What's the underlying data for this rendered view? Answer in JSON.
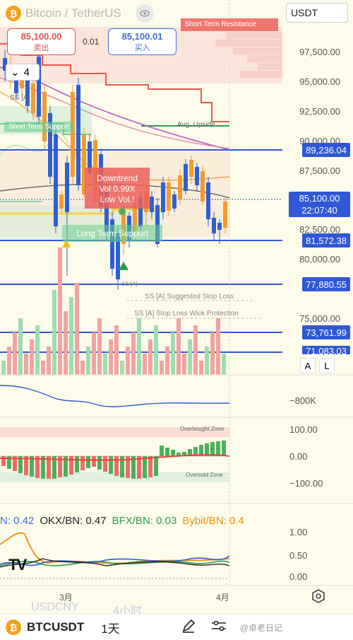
{
  "header": {
    "pair_title": "Bitcoin / TetherUS",
    "currency": "USDT",
    "sell_price": "85,100.00",
    "sell_label": "卖出",
    "spread": "0.01",
    "buy_price": "85,100.01",
    "buy_label": "买入",
    "stack_count": "4"
  },
  "price_axis": {
    "ticks": [
      "97,500.00",
      "95,000.00",
      "92,500.00",
      "90,000.00",
      "87,500.00",
      "82,500.00",
      "80,000.00",
      "75,000.00"
    ],
    "levels": [
      "89,236.04",
      "81,572.38",
      "77,880.55",
      "73,761.99",
      "71,083.03"
    ],
    "current_price": "85,100.00",
    "current_time": "22:07:40"
  },
  "annotations": {
    "short_term_resistance": "Short Term Resistance",
    "avg_upside": "Avg. Upside",
    "short_term_support": "Short Term Support",
    "downtrend_line1": "Downtrend",
    "downtrend_line2": "Vol 0.99X",
    "downtrend_line3": "Low Vol.!",
    "long_term_support": "Long Term Support",
    "suggested_stop": "SS [A] Suggested Stop Loss",
    "wick_protection": "SS [A] Stop Loss Wick Protection",
    "ss_a": "SS [A]",
    "ss_a_small": "SS [A]"
  },
  "volume_panel": {
    "a_label": "A",
    "l_label": "L"
  },
  "osc_panel": {
    "value": "−800K"
  },
  "zone_panel": {
    "overbought": "Overbought Zone",
    "oversold": "Oversold Zone",
    "ticks": [
      "100.00",
      "0.00",
      "−100.00"
    ]
  },
  "exchange_panel": {
    "items": [
      {
        "text": "N: 0.42",
        "color": "#3b6fd8"
      },
      {
        "text": "OKX/BN: 0.47",
        "color": "#222222"
      },
      {
        "text": "BFX/BN: 0.03",
        "color": "#2e9e4f"
      },
      {
        "text": "Bybit/BN: 0.4",
        "color": "#e8930c"
      }
    ],
    "ticks": [
      "1.00",
      "0.50",
      "0.00"
    ],
    "watermark": "TV"
  },
  "time_axis": {
    "march": "3月",
    "april": "4月"
  },
  "faded": {
    "usdcny": "USDCNY",
    "four_hours": "4小时"
  },
  "bottom": {
    "symbol": "BTCUSDT",
    "timeframe": "1天",
    "watermark_text": "@卓老日记"
  },
  "colors": {
    "up": "#4cb05a",
    "down": "#ef6a66",
    "blue_candle": "#2f5fd0",
    "orange_candle": "#f29b2f",
    "level_line": "#3057d5",
    "bitcoin": "#f6a01e"
  }
}
